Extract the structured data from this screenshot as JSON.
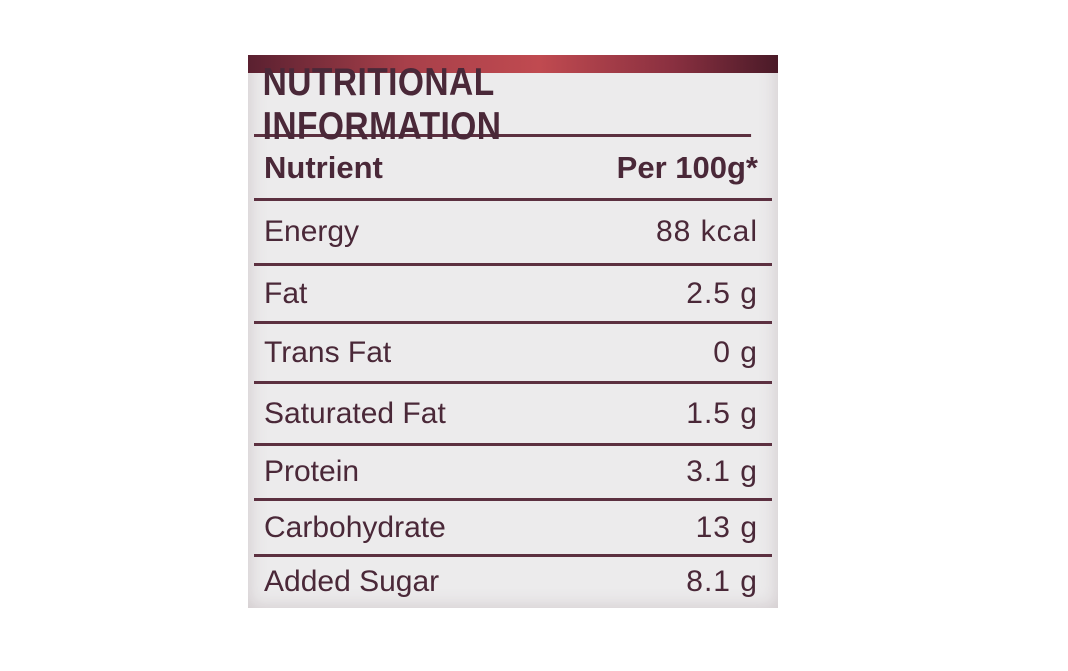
{
  "title": "NUTRITIONAL INFORMATION",
  "header": {
    "nutrient": "Nutrient",
    "per": "Per 100g*"
  },
  "rows": [
    {
      "name": "Energy",
      "value": "88 kcal"
    },
    {
      "name": "Fat",
      "value": "2.5 g"
    },
    {
      "name": "Trans Fat",
      "value": "0 g"
    },
    {
      "name": "Saturated Fat",
      "value": "1.5 g"
    },
    {
      "name": "Protein",
      "value": "3.1 g"
    },
    {
      "name": "Carbohydrate",
      "value": "13 g"
    },
    {
      "name": "Added Sugar",
      "value": "8.1 g"
    }
  ],
  "colors": {
    "text": "#4a2838",
    "lines": "#5c3040",
    "band": "#a8404a",
    "label": "#ecebec"
  }
}
